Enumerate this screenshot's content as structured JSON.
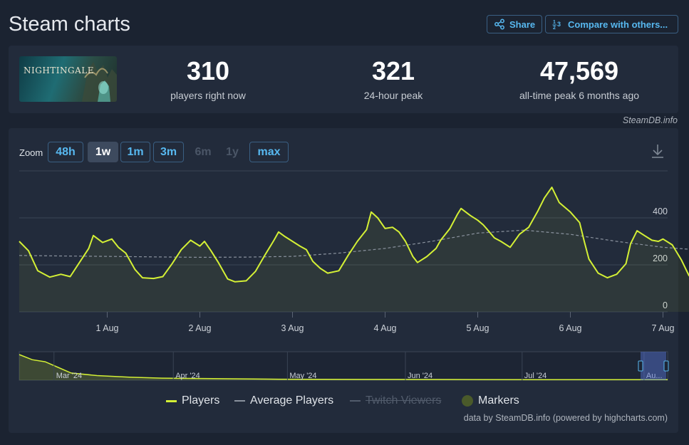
{
  "page": {
    "title": "Steam charts"
  },
  "toolbar": {
    "share_label": "Share",
    "compare_label": "Compare with others..."
  },
  "game": {
    "logo_text": "NIGHTINGALE"
  },
  "stats": [
    {
      "value": "310",
      "label": "players right now"
    },
    {
      "value": "321",
      "label": "24-hour peak"
    },
    {
      "value": "47,569",
      "label": "all-time peak 6 months ago"
    }
  ],
  "credit": "SteamDB.info",
  "zoom": {
    "label": "Zoom",
    "buttons": [
      {
        "label": "48h",
        "state": "normal"
      },
      {
        "label": "1w",
        "state": "active"
      },
      {
        "label": "1m",
        "state": "normal"
      },
      {
        "label": "3m",
        "state": "normal"
      },
      {
        "label": "6m",
        "state": "disabled"
      },
      {
        "label": "1y",
        "state": "disabled"
      },
      {
        "label": "max",
        "state": "normal"
      }
    ]
  },
  "colors": {
    "players": "#d4f035",
    "average": "#8a929e",
    "twitch": "#525c6c",
    "markers": "#4a5a2a",
    "accent": "#57b8f0",
    "background": "#1b2331",
    "panel": "#222b3b"
  },
  "chart_data": {
    "type": "line",
    "x_label_ticks": [
      "1 Aug",
      "2 Aug",
      "3 Aug",
      "4 Aug",
      "5 Aug",
      "6 Aug",
      "7 Aug"
    ],
    "y_ticks": [
      "0",
      "200",
      "400"
    ],
    "ylim": [
      0,
      600
    ],
    "xlim_days": [
      -0.95,
      6.05
    ],
    "x_unit": "days from 1 Aug 00:00",
    "series": [
      {
        "name": "Players",
        "points": [
          [
            -0.95,
            300
          ],
          [
            -0.85,
            260
          ],
          [
            -0.75,
            175
          ],
          [
            -0.62,
            148
          ],
          [
            -0.5,
            160
          ],
          [
            -0.4,
            150
          ],
          [
            -0.3,
            210
          ],
          [
            -0.2,
            270
          ],
          [
            -0.15,
            325
          ],
          [
            -0.05,
            295
          ],
          [
            0.05,
            310
          ],
          [
            0.12,
            275
          ],
          [
            0.2,
            250
          ],
          [
            0.3,
            180
          ],
          [
            0.38,
            145
          ],
          [
            0.5,
            142
          ],
          [
            0.6,
            150
          ],
          [
            0.7,
            205
          ],
          [
            0.8,
            265
          ],
          [
            0.9,
            305
          ],
          [
            1.0,
            280
          ],
          [
            1.05,
            300
          ],
          [
            1.12,
            260
          ],
          [
            1.2,
            210
          ],
          [
            1.3,
            140
          ],
          [
            1.38,
            128
          ],
          [
            1.5,
            132
          ],
          [
            1.6,
            172
          ],
          [
            1.7,
            240
          ],
          [
            1.8,
            305
          ],
          [
            1.85,
            340
          ],
          [
            1.92,
            320
          ],
          [
            2.0,
            300
          ],
          [
            2.08,
            280
          ],
          [
            2.15,
            265
          ],
          [
            2.22,
            215
          ],
          [
            2.3,
            185
          ],
          [
            2.38,
            165
          ],
          [
            2.5,
            175
          ],
          [
            2.6,
            240
          ],
          [
            2.7,
            300
          ],
          [
            2.8,
            350
          ],
          [
            2.85,
            425
          ],
          [
            2.92,
            400
          ],
          [
            3.0,
            355
          ],
          [
            3.08,
            360
          ],
          [
            3.15,
            340
          ],
          [
            3.22,
            300
          ],
          [
            3.3,
            235
          ],
          [
            3.35,
            210
          ],
          [
            3.45,
            235
          ],
          [
            3.55,
            270
          ],
          [
            3.6,
            305
          ],
          [
            3.7,
            355
          ],
          [
            3.78,
            415
          ],
          [
            3.82,
            440
          ],
          [
            3.92,
            410
          ],
          [
            4.0,
            390
          ],
          [
            4.06,
            370
          ],
          [
            4.1,
            352
          ],
          [
            4.18,
            315
          ],
          [
            4.25,
            300
          ],
          [
            4.35,
            275
          ],
          [
            4.45,
            330
          ],
          [
            4.55,
            360
          ],
          [
            4.65,
            430
          ],
          [
            4.72,
            485
          ],
          [
            4.8,
            530
          ],
          [
            4.88,
            465
          ],
          [
            5.0,
            425
          ],
          [
            5.1,
            380
          ],
          [
            5.15,
            300
          ],
          [
            5.2,
            225
          ],
          [
            5.3,
            165
          ],
          [
            5.4,
            145
          ],
          [
            5.5,
            160
          ],
          [
            5.6,
            205
          ],
          [
            5.65,
            290
          ],
          [
            5.72,
            345
          ],
          [
            5.8,
            325
          ],
          [
            5.88,
            305
          ],
          [
            5.95,
            300
          ],
          [
            6.0,
            310
          ],
          [
            6.1,
            285
          ],
          [
            6.2,
            220
          ],
          [
            6.28,
            155
          ],
          [
            6.35,
            128
          ],
          [
            6.45,
            128
          ],
          [
            6.55,
            155
          ],
          [
            6.65,
            195
          ],
          [
            6.75,
            235
          ],
          [
            6.85,
            265
          ],
          [
            6.92,
            315
          ],
          [
            6.98,
            308
          ],
          [
            7.02,
            290
          ],
          [
            7.06,
            205
          ],
          [
            7.1,
            270
          ],
          [
            7.14,
            295
          ],
          [
            7.15,
            320
          ]
        ]
      },
      {
        "name": "Average Players",
        "points": [
          [
            -0.95,
            240
          ],
          [
            -0.5,
            238
          ],
          [
            0,
            236
          ],
          [
            0.5,
            234
          ],
          [
            1.0,
            232
          ],
          [
            1.5,
            233
          ],
          [
            2.0,
            236
          ],
          [
            2.5,
            250
          ],
          [
            3.0,
            270
          ],
          [
            3.5,
            300
          ],
          [
            4.0,
            335
          ],
          [
            4.5,
            348
          ],
          [
            5.0,
            330
          ],
          [
            5.5,
            300
          ],
          [
            6.0,
            275
          ],
          [
            6.5,
            260
          ],
          [
            7.0,
            250
          ],
          [
            7.15,
            248
          ]
        ]
      }
    ],
    "legend": [
      "Players",
      "Average Players",
      "Twitch Viewers",
      "Markers"
    ],
    "legend_hidden": [
      "Twitch Viewers"
    ],
    "navigator": {
      "month_labels": [
        "Mar '24",
        "Apr '24",
        "May '24",
        "Jun '24",
        "Jul '24",
        "Au..."
      ],
      "shape": [
        [
          0,
          1.0
        ],
        [
          0.02,
          0.8
        ],
        [
          0.04,
          0.72
        ],
        [
          0.06,
          0.5
        ],
        [
          0.08,
          0.28
        ],
        [
          0.12,
          0.18
        ],
        [
          0.17,
          0.12
        ],
        [
          0.22,
          0.08
        ],
        [
          0.3,
          0.06
        ],
        [
          0.4,
          0.04
        ],
        [
          0.55,
          0.03
        ],
        [
          0.7,
          0.025
        ],
        [
          0.85,
          0.02
        ],
        [
          1.0,
          0.02
        ]
      ]
    }
  },
  "footer": "data by SteamDB.info (powered by highcharts.com)"
}
